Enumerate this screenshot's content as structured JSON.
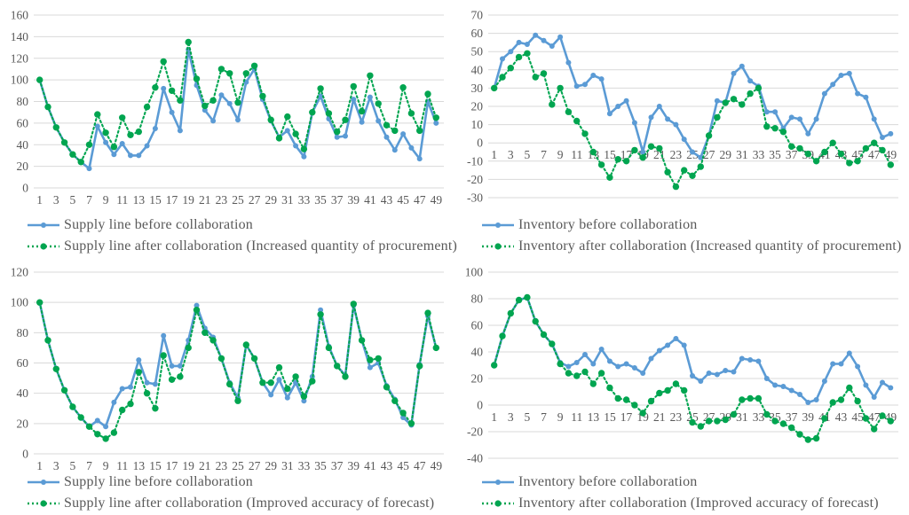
{
  "colors": {
    "before_line": "#5B9BD5",
    "after_line": "#00A550",
    "gridline": "#D9D9D9",
    "tick_text": "#595959",
    "legend_text": "#595959",
    "background": "#FFFFFF"
  },
  "categories": [
    1,
    2,
    3,
    4,
    5,
    6,
    7,
    8,
    9,
    10,
    11,
    12,
    13,
    14,
    15,
    16,
    17,
    18,
    19,
    20,
    21,
    22,
    23,
    24,
    25,
    26,
    27,
    28,
    29,
    30,
    31,
    32,
    33,
    34,
    35,
    36,
    37,
    38,
    39,
    40,
    41,
    42,
    43,
    44,
    45,
    46,
    47,
    48,
    49
  ],
  "chart_data": [
    {
      "type": "line",
      "position": "top-left",
      "ylim": [
        0,
        160
      ],
      "ytick_step": 20,
      "grid": "on",
      "legend_position": "bottom-left",
      "x_ticks": [
        1,
        3,
        5,
        7,
        9,
        11,
        13,
        15,
        17,
        19,
        21,
        23,
        25,
        27,
        29,
        31,
        33,
        35,
        37,
        39,
        41,
        43,
        45,
        47,
        49
      ],
      "series": [
        {
          "name": "Supply line before collaboration",
          "color": "#5B9BD5",
          "style": "solid",
          "values": [
            100,
            75,
            56,
            42,
            31,
            24,
            18,
            57,
            42,
            31,
            41,
            30,
            30,
            39,
            55,
            92,
            70,
            53,
            128,
            95,
            72,
            62,
            86,
            78,
            63,
            98,
            110,
            82,
            62,
            47,
            53,
            39,
            29,
            70,
            85,
            64,
            47,
            48,
            82,
            61,
            84,
            62,
            47,
            35,
            50,
            37,
            27,
            80,
            60
          ]
        },
        {
          "name": "Supply line after collaboration (Increased quantity of procurement)",
          "color": "#00A550",
          "style": "dotted",
          "values": [
            100,
            75,
            56,
            42,
            31,
            24,
            40,
            68,
            51,
            38,
            65,
            49,
            52,
            75,
            93,
            117,
            90,
            81,
            135,
            101,
            76,
            81,
            110,
            106,
            79,
            106,
            113,
            85,
            63,
            46,
            66,
            50,
            36,
            70,
            92,
            69,
            52,
            63,
            94,
            71,
            104,
            78,
            58,
            53,
            93,
            69,
            53,
            87,
            65
          ]
        }
      ]
    },
    {
      "type": "line",
      "position": "top-right",
      "ylim": [
        -30,
        70
      ],
      "ytick_step": 10,
      "grid": "on",
      "legend_position": "bottom-left",
      "x_ticks": [
        1,
        3,
        5,
        7,
        9,
        11,
        13,
        15,
        17,
        19,
        21,
        23,
        25,
        27,
        29,
        31,
        33,
        35,
        37,
        39,
        41,
        43,
        45,
        47,
        49
      ],
      "series": [
        {
          "name": "Inventory before collaboration",
          "color": "#5B9BD5",
          "style": "solid",
          "values": [
            30,
            46,
            50,
            55,
            54,
            59,
            56,
            53,
            58,
            44,
            31,
            32,
            37,
            35,
            16,
            20,
            23,
            11,
            -5,
            14,
            20,
            13,
            10,
            2,
            -5,
            -8,
            4,
            23,
            22,
            38,
            42,
            34,
            31,
            17,
            17,
            8,
            14,
            13,
            5,
            13,
            27,
            32,
            37,
            38,
            27,
            25,
            13,
            3,
            5
          ]
        },
        {
          "name": "Inventory after collaboration (Increased quantity of procurement)",
          "color": "#00A550",
          "style": "dotted",
          "values": [
            30,
            36,
            41,
            47,
            49,
            36,
            38,
            21,
            30,
            17,
            12,
            5,
            -5,
            -12,
            -19,
            -9,
            -10,
            -4,
            -8,
            -2,
            -3,
            -16,
            -24,
            -15,
            -18,
            -13,
            4,
            14,
            22,
            24,
            21,
            27,
            30,
            9,
            8,
            6,
            -2,
            -3,
            -6,
            -10,
            -5,
            0,
            -6,
            -11,
            -10,
            -3,
            0,
            -4,
            -12
          ]
        }
      ]
    },
    {
      "type": "line",
      "position": "bottom-left",
      "ylim": [
        0,
        120
      ],
      "ytick_step": 20,
      "grid": "on",
      "legend_position": "bottom-left",
      "x_ticks": [
        1,
        3,
        5,
        7,
        9,
        11,
        13,
        15,
        17,
        19,
        21,
        23,
        25,
        27,
        29,
        31,
        33,
        35,
        37,
        39,
        41,
        43,
        45,
        47,
        49
      ],
      "series": [
        {
          "name": "Supply line before collaboration",
          "color": "#5B9BD5",
          "style": "solid",
          "values": [
            100,
            75,
            56,
            42,
            31,
            24,
            18,
            22,
            18,
            34,
            43,
            44,
            62,
            47,
            46,
            78,
            58,
            58,
            75,
            98,
            83,
            77,
            63,
            47,
            37,
            72,
            63,
            47,
            39,
            49,
            37,
            47,
            35,
            51,
            95,
            71,
            58,
            52,
            98,
            75,
            57,
            60,
            45,
            36,
            24,
            19,
            59,
            91,
            70
          ]
        },
        {
          "name": "Supply line after collaboration (Improved accuracy of forecast)",
          "color": "#00A550",
          "style": "dotted",
          "values": [
            100,
            75,
            56,
            42,
            31,
            24,
            18,
            13,
            10,
            14,
            29,
            33,
            54,
            40,
            30,
            65,
            49,
            51,
            70,
            95,
            80,
            75,
            63,
            46,
            35,
            72,
            63,
            47,
            47,
            57,
            43,
            51,
            38,
            48,
            92,
            70,
            58,
            51,
            99,
            75,
            62,
            63,
            44,
            35,
            27,
            20,
            58,
            93,
            70
          ]
        }
      ]
    },
    {
      "type": "line",
      "position": "bottom-right",
      "ylim": [
        -40,
        100
      ],
      "ytick_step": 20,
      "grid": "on",
      "legend_position": "bottom-left",
      "x_ticks": [
        1,
        3,
        5,
        7,
        9,
        11,
        13,
        15,
        17,
        19,
        21,
        23,
        25,
        27,
        29,
        31,
        33,
        35,
        37,
        39,
        41,
        43,
        45,
        47,
        49
      ],
      "series": [
        {
          "name": "Inventory before collaboration",
          "color": "#5B9BD5",
          "style": "solid",
          "values": [
            30,
            52,
            69,
            79,
            81,
            63,
            53,
            46,
            32,
            29,
            32,
            38,
            31,
            42,
            33,
            29,
            31,
            28,
            24,
            35,
            41,
            45,
            50,
            45,
            22,
            18,
            24,
            23,
            26,
            25,
            35,
            34,
            33,
            20,
            15,
            14,
            11,
            8,
            2,
            4,
            18,
            31,
            31,
            39,
            29,
            15,
            6,
            17,
            13
          ]
        },
        {
          "name": "Inventory after collaboration (Improved accuracy of forecast)",
          "color": "#00A550",
          "style": "dotted",
          "values": [
            30,
            52,
            69,
            79,
            81,
            63,
            53,
            46,
            31,
            24,
            22,
            25,
            16,
            24,
            13,
            5,
            4,
            0,
            -6,
            3,
            9,
            11,
            16,
            11,
            -13,
            -16,
            -12,
            -12,
            -11,
            -7,
            4,
            5,
            5,
            -7,
            -12,
            -14,
            -17,
            -22,
            -26,
            -25,
            -10,
            2,
            4,
            13,
            3,
            -10,
            -18,
            -8,
            -12
          ]
        }
      ]
    }
  ]
}
